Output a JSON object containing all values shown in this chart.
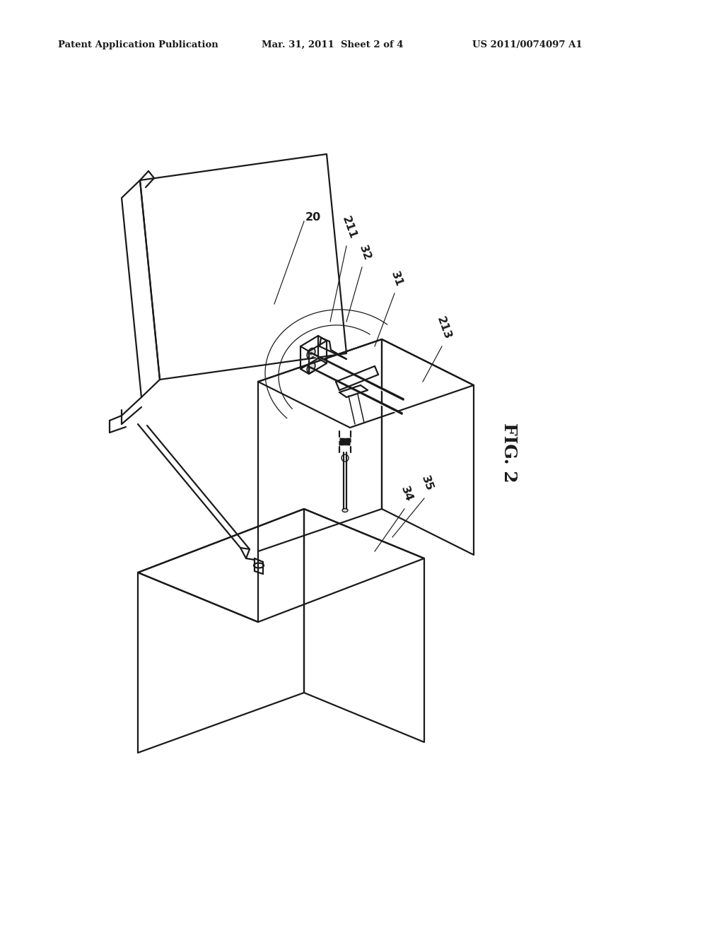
{
  "bg_color": "#ffffff",
  "line_color": "#1a1a1a",
  "header_left": "Patent Application Publication",
  "header_center": "Mar. 31, 2011  Sheet 2 of 4",
  "header_right": "US 2011/0074097 A1",
  "fig_label": "FIG. 2",
  "lw_main": 1.6,
  "lw_thin": 0.9,
  "lw_thick": 2.2
}
